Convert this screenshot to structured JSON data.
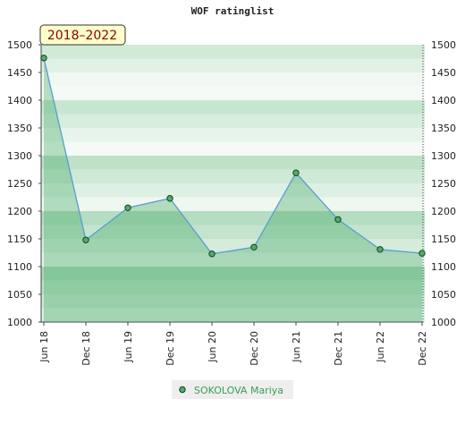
{
  "chart_data": {
    "type": "line",
    "title": "WOF ratinglist",
    "period": "2018–2022",
    "categories": [
      "Jun 18",
      "Dec 18",
      "Jun 19",
      "Dec 19",
      "Jun 20",
      "Dec 20",
      "Jun 21",
      "Dec 21",
      "Jun 22",
      "Dec 22"
    ],
    "series": [
      {
        "name": "SOKOLOVA Mariya",
        "color": "#5b9bd5",
        "values": [
          1476,
          1148,
          1206,
          1223,
          1123,
          1135,
          1269,
          1185,
          1131,
          1124
        ]
      }
    ],
    "ylim": [
      1000,
      1500
    ],
    "yticks": [
      1000,
      1050,
      1100,
      1150,
      1200,
      1250,
      1300,
      1350,
      1400,
      1450,
      1500
    ]
  }
}
